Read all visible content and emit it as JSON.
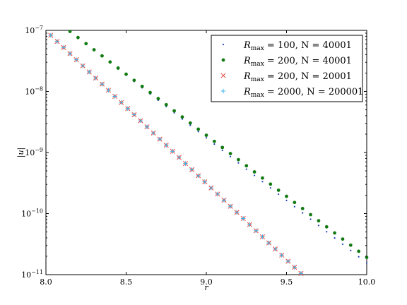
{
  "chart_data": {
    "type": "scatter",
    "xlabel": "r",
    "ylabel": "|u|",
    "xlim": [
      8.0,
      10.0
    ],
    "ylim": [
      1e-11,
      1e-07
    ],
    "yscale": "log",
    "grid": false,
    "legend_position": "top-right",
    "xticks": [
      "8.0",
      "8.5",
      "9.0",
      "9.5",
      "10.0"
    ],
    "yticks": [
      {
        "base": "10",
        "exp": "−11",
        "value": 1e-11
      },
      {
        "base": "10",
        "exp": "−10",
        "value": 1e-10
      },
      {
        "base": "10",
        "exp": "−9",
        "value": 1e-09
      },
      {
        "base": "10",
        "exp": "−8",
        "value": 1e-08
      },
      {
        "base": "10",
        "exp": "−7",
        "value": 1e-07
      }
    ],
    "series": [
      {
        "name": "R_max = 100, N = 40001",
        "label_main": "R",
        "label_sub": "max",
        "label_rest": " = 100, N = 40001",
        "marker": "point",
        "color": "#1f3fbf",
        "x_start": 8.15,
        "x_step": 0.05,
        "count": 38,
        "y_start": 9.6e-08,
        "decay_per_unit": 8.2
      },
      {
        "name": "R_max = 200, N = 40001",
        "label_main": "R",
        "label_sub": "max",
        "label_rest": " = 200, N = 40001",
        "marker": "dot",
        "color": "#137a13",
        "x_start": 8.15,
        "x_step": 0.05,
        "count": 38,
        "y_start": 9.6e-08,
        "decay_per_unit": 8.0
      },
      {
        "name": "R_max = 200, N = 20001",
        "label_main": "R",
        "label_sub": "max",
        "label_rest": " = 200, N = 20001",
        "marker": "x",
        "color": "#e8413a",
        "x_start": 8.03,
        "x_step": 0.04,
        "count": 43,
        "y_start": 8.3e-08,
        "decay_per_unit": 10.0
      },
      {
        "name": "R_max = 2000, N = 200001",
        "label_main": "R",
        "label_sub": "max",
        "label_rest": " = 2000, N = 200001",
        "marker": "plus",
        "color": "#3fb3e8",
        "x_start": 8.03,
        "x_step": 0.04,
        "count": 43,
        "y_start": 8.3e-08,
        "decay_per_unit": 10.0
      }
    ]
  }
}
